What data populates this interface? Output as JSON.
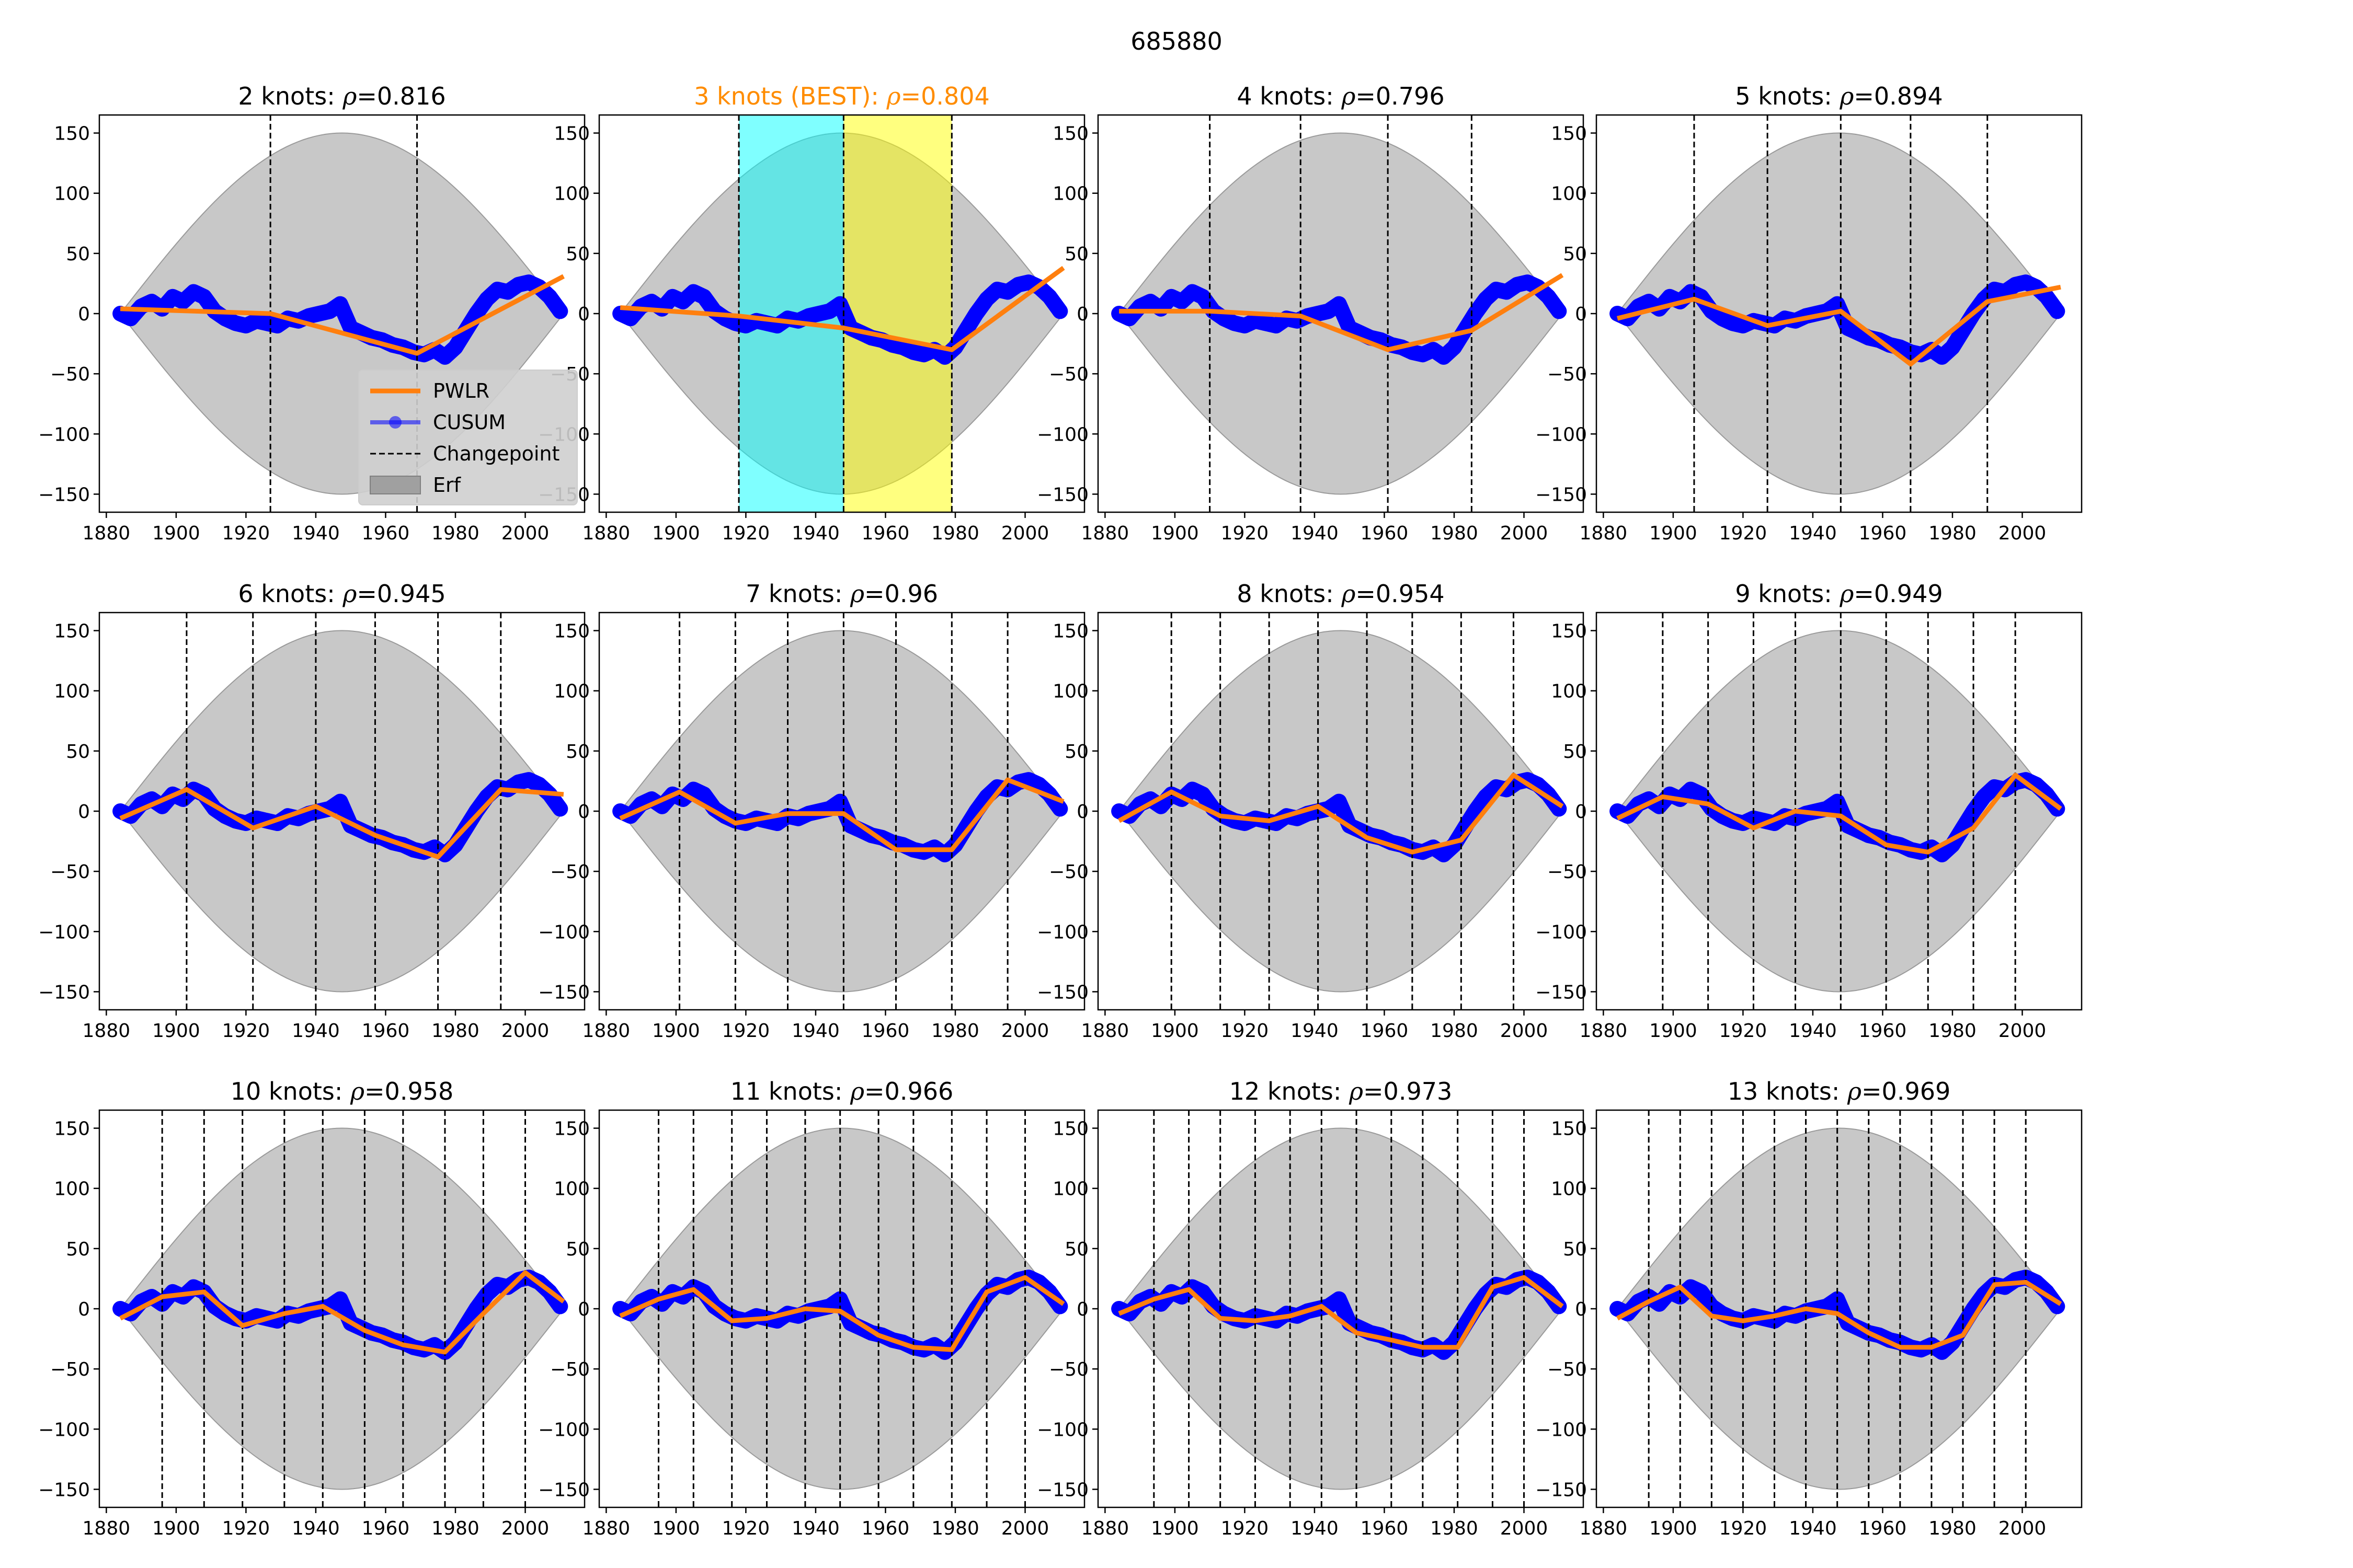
{
  "suptitle": "685880",
  "colors": {
    "pwlr": "#ff7f0e",
    "cusum": "#0000ff",
    "erf": "#b0b0b0",
    "best_title": "#ff8c00",
    "highlight_a": "#00ffff",
    "highlight_b": "#ffff00"
  },
  "legend": {
    "placement": "lower-right of first panel",
    "entries": [
      {
        "label": "PWLR",
        "kind": "line",
        "color": "#ff7f0e"
      },
      {
        "label": "CUSUM",
        "kind": "marker-line",
        "color": "#0000ff"
      },
      {
        "label": "Changepoint",
        "kind": "dashed",
        "color": "#000000"
      },
      {
        "label": "Erf",
        "kind": "patch",
        "color": "#a0a0a0"
      }
    ]
  },
  "chart_data": {
    "type": "line",
    "grid": false,
    "xlim": [
      1878,
      2017
    ],
    "ylim": [
      -165,
      165
    ],
    "xticks": [
      1880,
      1900,
      1920,
      1940,
      1960,
      1980,
      2000
    ],
    "yticks": [
      150,
      100,
      50,
      0,
      -50,
      -100,
      -150
    ],
    "erf_band": {
      "x_start": 1884,
      "x_end": 2011,
      "amplitude": 150,
      "center": 1948
    },
    "cusum": {
      "x": [
        1884,
        1887,
        1890,
        1893,
        1896,
        1899,
        1902,
        1905,
        1908,
        1911,
        1914,
        1917,
        1920,
        1923,
        1926,
        1929,
        1932,
        1935,
        1938,
        1941,
        1944,
        1947,
        1950,
        1953,
        1956,
        1959,
        1962,
        1965,
        1968,
        1971,
        1974,
        1977,
        1980,
        1983,
        1986,
        1989,
        1992,
        1995,
        1998,
        2001,
        2004,
        2007,
        2010
      ],
      "y": [
        0,
        -4,
        6,
        10,
        4,
        14,
        10,
        18,
        14,
        2,
        -4,
        -8,
        -10,
        -6,
        -8,
        -10,
        -4,
        -6,
        -2,
        0,
        2,
        8,
        -12,
        -16,
        -20,
        -22,
        -26,
        -28,
        -32,
        -34,
        -30,
        -36,
        -28,
        -14,
        0,
        12,
        20,
        18,
        24,
        26,
        22,
        14,
        2
      ]
    },
    "panels": [
      {
        "title": "2 knots: $\\rho$=0.816",
        "rho": 0.816,
        "best": false,
        "changepoints": [
          1927,
          1969
        ],
        "pwlr": [
          [
            1884,
            4
          ],
          [
            1927,
            0
          ],
          [
            1969,
            -33
          ],
          [
            2011,
            31
          ]
        ]
      },
      {
        "title": "3 knots (BEST): $\\rho$=0.804",
        "rho": 0.804,
        "best": true,
        "changepoints": [
          1918,
          1948,
          1979
        ],
        "highlights": [
          [
            1918,
            1948
          ],
          [
            1948,
            1979
          ]
        ],
        "pwlr": [
          [
            1884,
            5
          ],
          [
            1918,
            -2
          ],
          [
            1948,
            -12
          ],
          [
            1979,
            -30
          ],
          [
            2011,
            38
          ]
        ]
      },
      {
        "title": "4 knots: $\\rho$=0.796",
        "rho": 0.796,
        "best": false,
        "changepoints": [
          1910,
          1936,
          1961,
          1985
        ],
        "pwlr": [
          [
            1884,
            2
          ],
          [
            1910,
            2
          ],
          [
            1936,
            -2
          ],
          [
            1961,
            -30
          ],
          [
            1985,
            -14
          ],
          [
            2011,
            32
          ]
        ]
      },
      {
        "title": "5 knots: $\\rho$=0.894",
        "rho": 0.894,
        "best": false,
        "changepoints": [
          1906,
          1927,
          1948,
          1968,
          1990
        ],
        "pwlr": [
          [
            1884,
            -4
          ],
          [
            1906,
            12
          ],
          [
            1927,
            -10
          ],
          [
            1948,
            2
          ],
          [
            1968,
            -42
          ],
          [
            1990,
            10
          ],
          [
            2011,
            22
          ]
        ]
      },
      {
        "title": "6 knots: $\\rho$=0.945",
        "rho": 0.945,
        "best": false,
        "changepoints": [
          1903,
          1922,
          1940,
          1957,
          1975,
          1993
        ],
        "pwlr": [
          [
            1884,
            -6
          ],
          [
            1903,
            18
          ],
          [
            1922,
            -14
          ],
          [
            1940,
            4
          ],
          [
            1957,
            -20
          ],
          [
            1975,
            -38
          ],
          [
            1993,
            18
          ],
          [
            2011,
            14
          ]
        ]
      },
      {
        "title": "7 knots: $\\rho$=0.96",
        "rho": 0.96,
        "best": false,
        "changepoints": [
          1901,
          1917,
          1932,
          1948,
          1963,
          1979,
          1995
        ],
        "pwlr": [
          [
            1884,
            -6
          ],
          [
            1901,
            16
          ],
          [
            1917,
            -10
          ],
          [
            1932,
            -2
          ],
          [
            1948,
            -2
          ],
          [
            1963,
            -32
          ],
          [
            1979,
            -32
          ],
          [
            1995,
            26
          ],
          [
            2011,
            8
          ]
        ]
      },
      {
        "title": "8 knots: $\\rho$=0.954",
        "rho": 0.954,
        "best": false,
        "changepoints": [
          1899,
          1913,
          1927,
          1941,
          1955,
          1968,
          1982,
          1997
        ],
        "pwlr": [
          [
            1884,
            -8
          ],
          [
            1899,
            16
          ],
          [
            1913,
            -4
          ],
          [
            1927,
            -8
          ],
          [
            1941,
            4
          ],
          [
            1955,
            -22
          ],
          [
            1968,
            -34
          ],
          [
            1982,
            -24
          ],
          [
            1997,
            30
          ],
          [
            2011,
            4
          ]
        ]
      },
      {
        "title": "9 knots: $\\rho$=0.949",
        "rho": 0.949,
        "best": false,
        "changepoints": [
          1897,
          1910,
          1923,
          1935,
          1948,
          1961,
          1973,
          1986,
          1998
        ],
        "pwlr": [
          [
            1884,
            -6
          ],
          [
            1897,
            12
          ],
          [
            1910,
            6
          ],
          [
            1923,
            -14
          ],
          [
            1935,
            0
          ],
          [
            1948,
            -4
          ],
          [
            1961,
            -28
          ],
          [
            1973,
            -34
          ],
          [
            1986,
            -14
          ],
          [
            1998,
            30
          ],
          [
            2011,
            2
          ]
        ]
      },
      {
        "title": "10 knots: $\\rho$=0.958",
        "rho": 0.958,
        "best": false,
        "changepoints": [
          1896,
          1908,
          1919,
          1931,
          1942,
          1954,
          1965,
          1977,
          1988,
          2000
        ],
        "pwlr": [
          [
            1884,
            -8
          ],
          [
            1896,
            10
          ],
          [
            1908,
            14
          ],
          [
            1919,
            -14
          ],
          [
            1931,
            -4
          ],
          [
            1942,
            2
          ],
          [
            1954,
            -18
          ],
          [
            1965,
            -30
          ],
          [
            1977,
            -36
          ],
          [
            1988,
            -4
          ],
          [
            2000,
            30
          ],
          [
            2011,
            6
          ]
        ]
      },
      {
        "title": "11 knots: $\\rho$=0.966",
        "rho": 0.966,
        "best": false,
        "changepoints": [
          1895,
          1905,
          1916,
          1926,
          1937,
          1947,
          1958,
          1968,
          1979,
          1989,
          2000
        ],
        "pwlr": [
          [
            1884,
            -6
          ],
          [
            1895,
            8
          ],
          [
            1905,
            16
          ],
          [
            1916,
            -10
          ],
          [
            1926,
            -8
          ],
          [
            1937,
            0
          ],
          [
            1947,
            -2
          ],
          [
            1958,
            -22
          ],
          [
            1968,
            -32
          ],
          [
            1979,
            -34
          ],
          [
            1989,
            14
          ],
          [
            2000,
            26
          ],
          [
            2011,
            4
          ]
        ]
      },
      {
        "title": "12 knots: $\\rho$=0.973",
        "rho": 0.973,
        "best": false,
        "changepoints": [
          1894,
          1904,
          1913,
          1923,
          1933,
          1942,
          1952,
          1962,
          1971,
          1981,
          1991,
          2000
        ],
        "pwlr": [
          [
            1884,
            -4
          ],
          [
            1894,
            8
          ],
          [
            1904,
            16
          ],
          [
            1913,
            -8
          ],
          [
            1923,
            -10
          ],
          [
            1933,
            -6
          ],
          [
            1942,
            2
          ],
          [
            1952,
            -20
          ],
          [
            1962,
            -26
          ],
          [
            1971,
            -32
          ],
          [
            1981,
            -32
          ],
          [
            1991,
            18
          ],
          [
            2000,
            26
          ],
          [
            2011,
            2
          ]
        ]
      },
      {
        "title": "13 knots: $\\rho$=0.969",
        "rho": 0.969,
        "best": false,
        "changepoints": [
          1893,
          1902,
          1911,
          1920,
          1929,
          1938,
          1947,
          1956,
          1965,
          1974,
          1983,
          1992,
          2001
        ],
        "pwlr": [
          [
            1884,
            -8
          ],
          [
            1893,
            6
          ],
          [
            1902,
            18
          ],
          [
            1911,
            -6
          ],
          [
            1920,
            -10
          ],
          [
            1929,
            -6
          ],
          [
            1938,
            0
          ],
          [
            1947,
            -4
          ],
          [
            1956,
            -20
          ],
          [
            1965,
            -32
          ],
          [
            1974,
            -32
          ],
          [
            1983,
            -22
          ],
          [
            1992,
            20
          ],
          [
            2001,
            22
          ],
          [
            2011,
            4
          ]
        ]
      }
    ]
  }
}
